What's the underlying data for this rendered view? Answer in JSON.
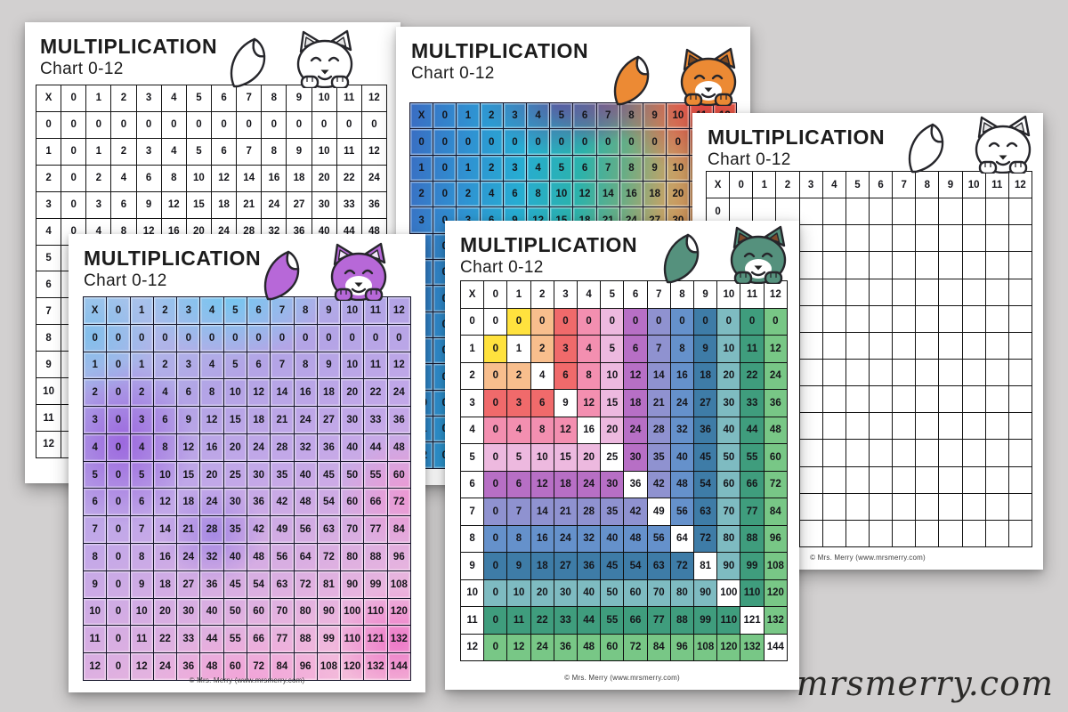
{
  "background_color": "#d2d0d0",
  "watermark_logo": "mrsmerry.com",
  "page_title": {
    "line1": "MULTIPLICATION",
    "line2": "Chart 0-12"
  },
  "page_footer": "© Mrs. Merry (www.mrsmerry.com)",
  "table": {
    "corner_label": "X",
    "column_headers": [
      "0",
      "1",
      "2",
      "3",
      "4",
      "5",
      "6",
      "7",
      "8",
      "9",
      "10",
      "11",
      "12"
    ],
    "row_headers": [
      "0",
      "1",
      "2",
      "3",
      "4",
      "5",
      "6",
      "7",
      "8",
      "9",
      "10",
      "11",
      "12"
    ],
    "products": [
      [
        0,
        0,
        0,
        0,
        0,
        0,
        0,
        0,
        0,
        0,
        0,
        0,
        0
      ],
      [
        0,
        1,
        2,
        3,
        4,
        5,
        6,
        7,
        8,
        9,
        10,
        11,
        12
      ],
      [
        0,
        2,
        4,
        6,
        8,
        10,
        12,
        14,
        16,
        18,
        20,
        22,
        24
      ],
      [
        0,
        3,
        6,
        9,
        12,
        15,
        18,
        21,
        24,
        27,
        30,
        33,
        36
      ],
      [
        0,
        4,
        8,
        12,
        16,
        20,
        24,
        28,
        32,
        36,
        40,
        44,
        48
      ],
      [
        0,
        5,
        10,
        15,
        20,
        25,
        30,
        35,
        40,
        45,
        50,
        55,
        60
      ],
      [
        0,
        6,
        12,
        18,
        24,
        30,
        36,
        42,
        48,
        54,
        60,
        66,
        72
      ],
      [
        0,
        7,
        14,
        21,
        28,
        35,
        42,
        49,
        56,
        63,
        70,
        77,
        84
      ],
      [
        0,
        8,
        16,
        24,
        32,
        40,
        48,
        56,
        64,
        72,
        80,
        88,
        96
      ],
      [
        0,
        9,
        18,
        27,
        36,
        45,
        54,
        63,
        72,
        81,
        90,
        99,
        108
      ],
      [
        0,
        10,
        20,
        30,
        40,
        50,
        60,
        70,
        80,
        90,
        100,
        110,
        120
      ],
      [
        0,
        11,
        22,
        33,
        44,
        55,
        66,
        77,
        88,
        99,
        110,
        121,
        132
      ],
      [
        0,
        12,
        24,
        36,
        48,
        60,
        72,
        84,
        96,
        108,
        120,
        132,
        144
      ]
    ]
  },
  "band_colors": [
    "#ffffff",
    "#ffe23e",
    "#f8be8d",
    "#f06a6b",
    "#f38fb0",
    "#edb9df",
    "#b76fc5",
    "#8f92d0",
    "#6591cb",
    "#3e7ca7",
    "#7ebbc1",
    "#3f9d7d",
    "#78c786"
  ],
  "diagonal_highlight": "#ffffff",
  "pages": [
    {
      "id": "bw",
      "filled": true,
      "style": "plain",
      "fox": {
        "name": "white-fox-icon",
        "body": "#ffffff",
        "inner_ear": "#e6e6e6",
        "tail_tip": "#ffffff"
      }
    },
    {
      "id": "rainbow",
      "filled": true,
      "style": "rainbow-gradient",
      "fox": {
        "name": "orange-fox-icon",
        "body": "#ec8a34",
        "inner_ear": "#80491f",
        "tail_tip": "#ffffff"
      }
    },
    {
      "id": "blank",
      "filled": false,
      "style": "plain",
      "fox": {
        "name": "white-fox-icon",
        "body": "#ffffff",
        "inner_ear": "#e6e6e6",
        "tail_tip": "#ffffff"
      }
    },
    {
      "id": "purple",
      "filled": true,
      "style": "watercolor-purple",
      "fox": {
        "name": "purple-fox-icon",
        "body": "#b768d8",
        "inner_ear": "#f3e6fa",
        "tail_tip": "#ffffff"
      }
    },
    {
      "id": "green",
      "filled": true,
      "style": "color-bands",
      "fox": {
        "name": "green-fox-icon",
        "body": "#55917d",
        "inner_ear": "#7d4a2a",
        "tail_tip": "#ffffff"
      }
    }
  ]
}
